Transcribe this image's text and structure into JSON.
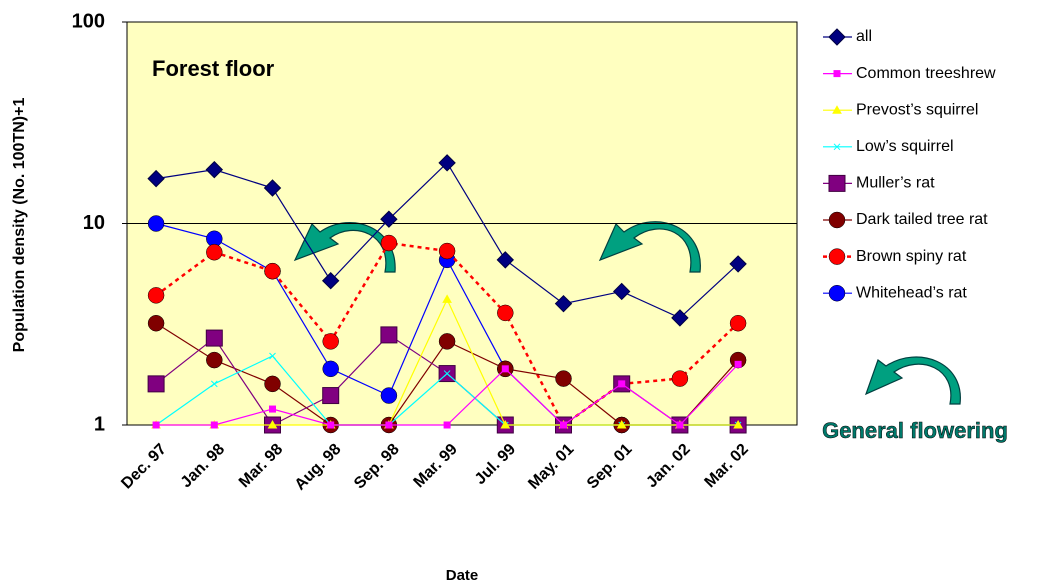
{
  "chart_data": {
    "type": "line",
    "title": "Forest floor",
    "x_label": "Date",
    "y_label": "Population density (No. 100TN)+1",
    "annotation": "General flowering",
    "log_scale": true,
    "ylim": [
      1,
      100
    ],
    "yticks": [
      1,
      10,
      100
    ],
    "grid": true,
    "categories": [
      "Dec. 97",
      "Jan. 98",
      "Mar. 98",
      "Aug. 98",
      "Sep. 98",
      "Mar. 99",
      "Jul. 99",
      "May. 01",
      "Sep. 01",
      "Jan. 02",
      "Mar. 02"
    ],
    "series": [
      {
        "name": "all",
        "color": "#000080",
        "marker": "diamond",
        "values": [
          16.7,
          18.5,
          15,
          5.2,
          10.5,
          20,
          6.6,
          4,
          4.6,
          3.4,
          6.3
        ]
      },
      {
        "name": "Common treeshrew",
        "color": "#ff00ff",
        "marker": "small-square",
        "values": [
          1,
          1,
          1.2,
          1,
          1,
          1,
          1.9,
          1,
          1.6,
          1,
          2
        ]
      },
      {
        "name": "Prevost’s squirrel",
        "color": "#ffff00",
        "marker": "triangle",
        "values": [
          1,
          1,
          1,
          1,
          1,
          4.2,
          1,
          1,
          1,
          1,
          1
        ]
      },
      {
        "name": "Low’s squirrel",
        "color": "#00ffff",
        "marker": "cross",
        "values": [
          1,
          1.6,
          2.2,
          1,
          1,
          1.8,
          1,
          1,
          1,
          1,
          1
        ]
      },
      {
        "name": "Muller’s rat",
        "color": "#800080",
        "marker": "square",
        "values": [
          1.6,
          2.7,
          1,
          1.4,
          2.8,
          1.8,
          1,
          1,
          1.6,
          1,
          1
        ]
      },
      {
        "name": "Dark tailed tree rat",
        "color": "#800000",
        "marker": "circle",
        "values": [
          3.2,
          2.1,
          1.6,
          1,
          1,
          2.6,
          1.9,
          1.7,
          1,
          1,
          2.1
        ]
      },
      {
        "name": "Brown spiny rat",
        "color": "#ff0000",
        "marker": "circle",
        "dashed": true,
        "values": [
          4.4,
          7.2,
          5.8,
          2.6,
          8,
          7.3,
          3.6,
          1,
          1.6,
          1.7,
          3.2
        ]
      },
      {
        "name": "Whitehead’s rat",
        "color": "#0000ff",
        "marker": "circle",
        "values": [
          10,
          8.4,
          5.8,
          1.9,
          1.4,
          6.6,
          1.9,
          1,
          1,
          1,
          1
        ]
      }
    ]
  }
}
